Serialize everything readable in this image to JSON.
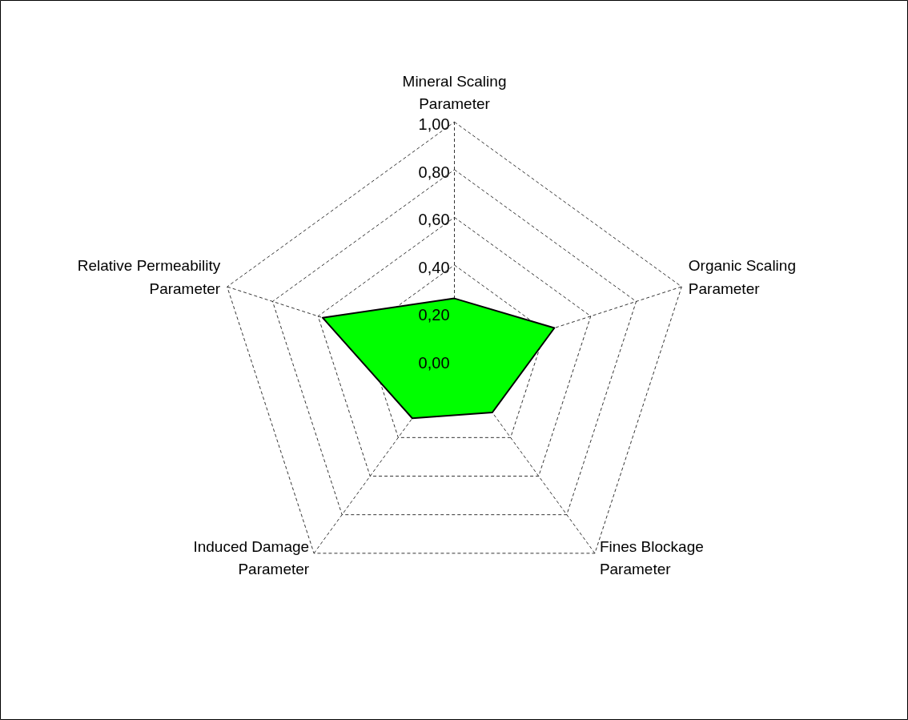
{
  "chart_data": {
    "type": "radar",
    "categories": [
      "Mineral Scaling Parameter",
      "Organic Scaling Parameter",
      "Fines Blockage Parameter",
      "Induced Damage Parameter",
      "Relative Permeability Parameter"
    ],
    "series": [
      {
        "color": "#00ff00",
        "values": [
          0.26,
          0.44,
          0.27,
          0.3,
          0.58
        ]
      }
    ],
    "ylim": [
      0,
      1
    ],
    "yticks": [
      {
        "value": 0,
        "label": "0,00"
      },
      {
        "value": 0.2,
        "label": "0,20"
      },
      {
        "value": 0.4,
        "label": "0,40"
      },
      {
        "value": 0.6,
        "label": "0,60"
      },
      {
        "value": 0.8,
        "label": "0,80"
      },
      {
        "value": 1,
        "label": "1,00"
      }
    ],
    "grid": true,
    "line_style": "solid",
    "marker": "none"
  }
}
